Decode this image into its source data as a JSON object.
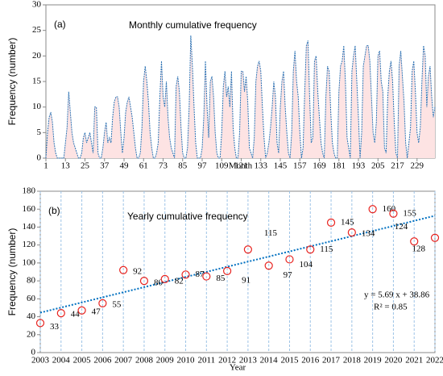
{
  "chart_data": [
    {
      "type": "area",
      "title": "Monthly cumulative frequency",
      "panel": "(a)",
      "x_label": "Month",
      "y_label": "Frequency  (number)",
      "x": [
        1,
        2,
        3,
        4,
        5,
        6,
        7,
        8,
        9,
        10,
        11,
        12,
        13,
        14,
        15,
        16,
        17,
        18,
        19,
        20,
        21,
        22,
        23,
        24,
        25,
        26,
        27,
        28,
        29,
        30,
        31,
        32,
        33,
        34,
        35,
        36,
        37,
        38,
        39,
        40,
        41,
        42,
        43,
        44,
        45,
        46,
        47,
        48,
        49,
        50,
        51,
        52,
        53,
        54,
        55,
        56,
        57,
        58,
        59,
        60,
        61,
        62,
        63,
        64,
        65,
        66,
        67,
        68,
        69,
        70,
        71,
        72,
        73,
        74,
        75,
        76,
        77,
        78,
        79,
        80,
        81,
        82,
        83,
        84,
        85,
        86,
        87,
        88,
        89,
        90,
        91,
        92,
        93,
        94,
        95,
        96,
        97,
        98,
        99,
        100,
        101,
        102,
        103,
        104,
        105,
        106,
        107,
        108,
        109,
        110,
        111,
        112,
        113,
        114,
        115,
        116,
        117,
        118,
        119,
        120,
        121,
        122,
        123,
        124,
        125,
        126,
        127,
        128,
        129,
        130,
        131,
        132,
        133,
        134,
        135,
        136,
        137,
        138,
        139,
        140,
        141,
        142,
        143,
        144,
        145,
        146,
        147,
        148,
        149,
        150,
        151,
        152,
        153,
        154,
        155,
        156,
        157,
        158,
        159,
        160,
        161,
        162,
        163,
        164,
        165,
        166,
        167,
        168,
        169,
        170,
        171,
        172,
        173,
        174,
        175,
        176,
        177,
        178,
        179,
        180,
        181,
        182,
        183,
        184,
        185,
        186,
        187,
        188,
        189,
        190,
        191,
        192,
        193,
        194,
        195,
        196,
        197,
        198,
        199,
        200,
        201,
        202,
        203,
        204,
        205,
        206,
        207,
        208,
        209,
        210,
        211,
        212,
        213,
        214,
        215,
        216,
        217,
        218,
        219,
        220,
        221,
        222,
        223,
        224,
        225,
        226,
        227,
        228,
        229,
        230,
        231,
        232,
        233,
        234,
        235,
        236,
        237,
        238,
        239,
        240
      ],
      "values": [
        0,
        5,
        8,
        9,
        7,
        3,
        1,
        0,
        0,
        0,
        0,
        0,
        3,
        6,
        13,
        9,
        5,
        3,
        2,
        1,
        0,
        0,
        1,
        4,
        5,
        3,
        4,
        5,
        3,
        1,
        10,
        10,
        1,
        0,
        0,
        2,
        5,
        7,
        3,
        4,
        3,
        8,
        11,
        12,
        12,
        10,
        5,
        1,
        4,
        9,
        11,
        12,
        10,
        8,
        5,
        2,
        0,
        0,
        1,
        6,
        15,
        18,
        15,
        11,
        5,
        2,
        0,
        0,
        1,
        3,
        12,
        19,
        12,
        10,
        15,
        8,
        4,
        2,
        1,
        0,
        14,
        16,
        13,
        6,
        1,
        0,
        0,
        2,
        10,
        24,
        18,
        10,
        3,
        0,
        0,
        0,
        2,
        8,
        19,
        10,
        4,
        15,
        16,
        12,
        5,
        1,
        0,
        0,
        5,
        14,
        17,
        12,
        14,
        10,
        17,
        6,
        2,
        0,
        0,
        5,
        17,
        17,
        13,
        16,
        11,
        2,
        1,
        0,
        4,
        15,
        18,
        19,
        17,
        10,
        4,
        0,
        1,
        3,
        6,
        10,
        15,
        12,
        3,
        1,
        10,
        15,
        17,
        10,
        5,
        1,
        0,
        5,
        17,
        21,
        15,
        12,
        5,
        0,
        2,
        13,
        22,
        23,
        12,
        3,
        4,
        19,
        20,
        13,
        8,
        3,
        1,
        0,
        12,
        18,
        17,
        9,
        3,
        1,
        0,
        0,
        13,
        18,
        19,
        22,
        15,
        4,
        2,
        0,
        17,
        20,
        22,
        15,
        8,
        0,
        5,
        18,
        20,
        22,
        22,
        19,
        12,
        5,
        3,
        7,
        20,
        21,
        15,
        13,
        2,
        1,
        12,
        17,
        19,
        15,
        7,
        1,
        0,
        18,
        21,
        16,
        11,
        3,
        0,
        3,
        6,
        17,
        19,
        13,
        5,
        3,
        6,
        15,
        22,
        20,
        10,
        16,
        18,
        12,
        8,
        10
      ],
      "color": "#2e75b6",
      "fill": "#fde3e3",
      "xlim": [
        1,
        240
      ],
      "xticks": [
        1,
        13,
        25,
        37,
        49,
        61,
        73,
        85,
        97,
        109,
        121,
        133,
        145,
        157,
        169,
        181,
        193,
        205,
        217,
        229
      ],
      "ylim": [
        0,
        30
      ],
      "yticks": [
        0,
        5,
        10,
        15,
        20,
        25,
        30
      ]
    },
    {
      "type": "scatter",
      "title": "Yearly cumulative frequency",
      "panel": "(b)",
      "x_label": "Year",
      "y_label": "Frequency  (number)",
      "x": [
        2003,
        2004,
        2005,
        2006,
        2007,
        2008,
        2009,
        2010,
        2011,
        2012,
        2013,
        2014,
        2015,
        2016,
        2017,
        2018,
        2019,
        2020,
        2021,
        2022
      ],
      "values": [
        33,
        44,
        47,
        55,
        92,
        80,
        82,
        87,
        85,
        91,
        115,
        97,
        104,
        115,
        145,
        134,
        160,
        155,
        124,
        128
      ],
      "color": "#e8231f",
      "trendline": {
        "x": [
          2003,
          2022
        ],
        "y": [
          44.55,
          152.66
        ],
        "color": "#0070c0",
        "equation": "y = 5.69 x + 38.86",
        "r2": "R² = 0.85"
      },
      "xlim": [
        2003,
        2022
      ],
      "xticks": [
        2003,
        2004,
        2005,
        2006,
        2007,
        2008,
        2009,
        2010,
        2011,
        2012,
        2013,
        2014,
        2015,
        2016,
        2017,
        2018,
        2019,
        2020,
        2021,
        2022
      ],
      "ylim": [
        0,
        180
      ],
      "yticks": [
        0,
        20,
        40,
        60,
        80,
        100,
        120,
        140,
        160,
        180
      ],
      "grid": "x",
      "grid_color": "#9dc3e6"
    }
  ]
}
